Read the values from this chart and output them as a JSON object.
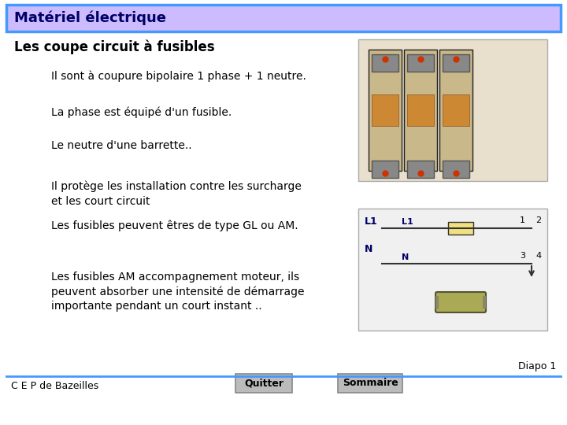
{
  "title": "Matériel électrique",
  "subtitle": "Les coupe circuit à fusibles",
  "bullet_points": [
    "Il sont à coupure bipolaire 1 phase + 1 neutre.",
    "La phase est équipé d'un fusible.",
    "Le neutre d'une barrette..",
    "Il protège les installation contre les surcharge\net les court circuit",
    "Les fusibles peuvent êtres de type GL ou AM.",
    "Les fusibles AM accompagnement moteur, ils\npeuvent absorber une intensité de démarrage\nimportante pendant un court instant .."
  ],
  "footer_left": "C E P de Bazeilles",
  "footer_btn1": "Quitter",
  "footer_btn2": "Sommaire",
  "footer_right": "Diapo 1",
  "header_bg": "#ccbbff",
  "header_border": "#4499ff",
  "bg_color": "#ffffff",
  "title_color": "#000066",
  "subtitle_color": "#000000",
  "text_color": "#000000",
  "footer_line_color": "#4499ff",
  "footer_text_color": "#000000",
  "btn_bg": "#bbbbbb",
  "btn_border": "#888888",
  "title_fontsize": 13,
  "subtitle_fontsize": 12,
  "bullet_fontsize": 10,
  "footer_fontsize": 9
}
